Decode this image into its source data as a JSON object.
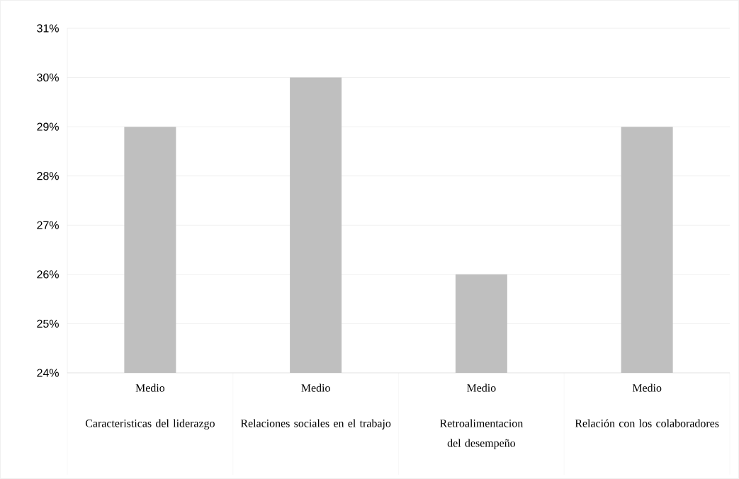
{
  "chart_data": {
    "type": "bar",
    "categories": [
      "Medio",
      "Medio",
      "Medio",
      "Medio"
    ],
    "values": [
      29,
      30,
      26,
      29
    ],
    "color": "#bfbfbf",
    "ylim": [
      24,
      31
    ],
    "yticks": [
      {
        "value": 24,
        "label": "24%"
      },
      {
        "value": 25,
        "label": "25%"
      },
      {
        "value": 26,
        "label": "26%"
      },
      {
        "value": 27,
        "label": "27%"
      },
      {
        "value": 28,
        "label": "28%"
      },
      {
        "value": 29,
        "label": "29%"
      },
      {
        "value": 30,
        "label": "30%"
      },
      {
        "value": 31,
        "label": "31%"
      }
    ],
    "grid": "y",
    "annotations": [
      "Caracteristicas del liderazgo",
      "Relaciones sociales en el trabajo",
      "Retroalimentacion del desempeño",
      "Relación con los colaboradores"
    ]
  }
}
